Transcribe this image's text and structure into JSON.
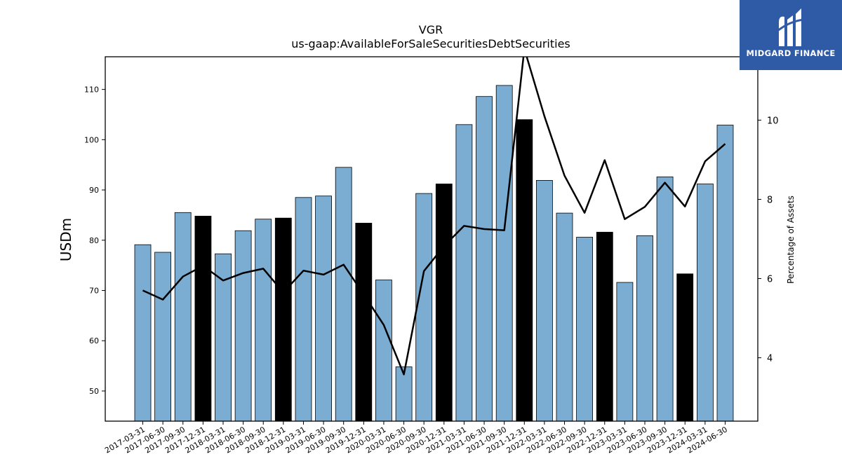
{
  "chart_data": {
    "type": "bar",
    "title": "VGR",
    "subtitle": "us-gaap:AvailableForSaleSecuritiesDebtSecurities",
    "ylabel": "USDm",
    "y2label": "Percentage of Assets",
    "ylim": [
      44,
      116.5
    ],
    "y2lim": [
      2.4,
      11.6
    ],
    "yticks": [
      50,
      60,
      70,
      80,
      90,
      100,
      110
    ],
    "y2ticks": [
      4,
      6,
      8,
      10
    ],
    "categories": [
      "2017-03-31",
      "2017-06-30",
      "2017-09-30",
      "2017-12-31",
      "2018-03-31",
      "2018-06-30",
      "2018-09-30",
      "2018-12-31",
      "2019-03-31",
      "2019-06-30",
      "2019-09-30",
      "2019-12-31",
      "2020-03-31",
      "2020-06-30",
      "2020-09-30",
      "2020-12-31",
      "2021-03-31",
      "2021-06-30",
      "2021-09-30",
      "2021-12-31",
      "2022-03-31",
      "2022-06-30",
      "2022-09-30",
      "2022-12-31",
      "2023-03-31",
      "2023-06-30",
      "2023-09-30",
      "2023-12-31",
      "2024-03-31",
      "2024-06-30"
    ],
    "series": [
      {
        "values": [
          79.1,
          77.6,
          85.5,
          84.8,
          77.3,
          81.9,
          84.2,
          84.4,
          88.5,
          88.8,
          94.5,
          83.4,
          72.1,
          54.8,
          89.3,
          91.2,
          103.0,
          108.6,
          110.8,
          104.0,
          91.9,
          85.4,
          80.6,
          81.6,
          71.6,
          80.9,
          92.6,
          73.3,
          91.2,
          102.9
        ],
        "year_end": [
          false,
          false,
          false,
          true,
          false,
          false,
          false,
          true,
          false,
          false,
          false,
          true,
          false,
          false,
          false,
          true,
          false,
          false,
          false,
          true,
          false,
          false,
          false,
          true,
          false,
          false,
          false,
          true,
          false,
          false
        ]
      },
      {
        "axis": "right",
        "values": [
          5.7,
          5.47,
          6.05,
          6.32,
          5.95,
          6.14,
          6.25,
          5.65,
          6.2,
          6.1,
          6.35,
          5.6,
          4.83,
          3.58,
          6.19,
          6.82,
          7.33,
          7.25,
          7.22,
          11.8,
          10.1,
          8.6,
          7.66,
          8.99,
          7.5,
          7.81,
          8.42,
          7.82,
          8.96,
          9.4
        ]
      }
    ],
    "colors": {
      "bar": "#7bacd2",
      "bar_year_end": "#000000",
      "line": "#000000"
    },
    "grid": false
  },
  "logo": {
    "text": "MIDGARD FINANCE",
    "color": "#2f5aa6"
  }
}
